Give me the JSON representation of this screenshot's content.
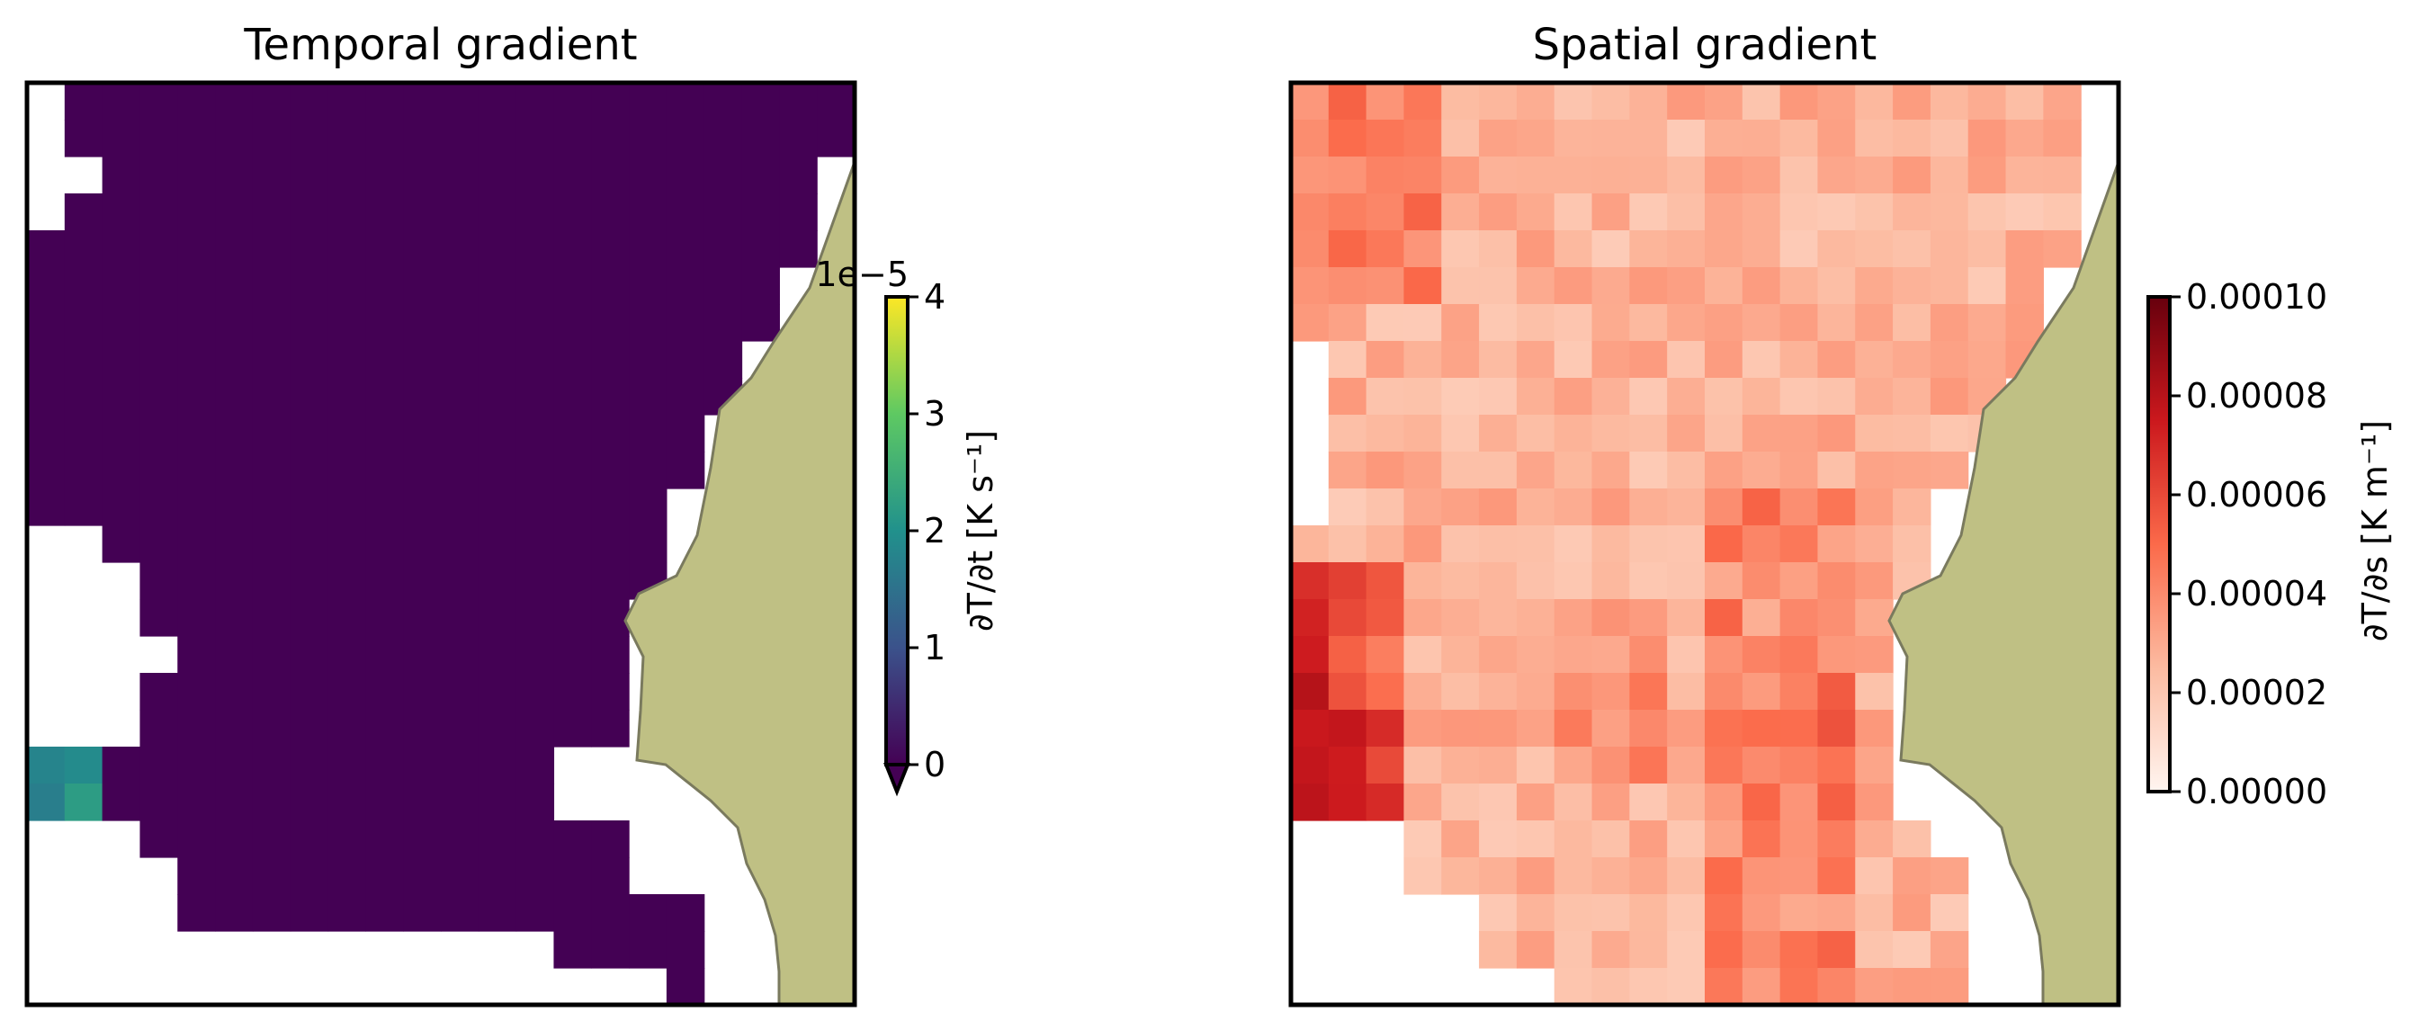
{
  "chart_data": [
    {
      "type": "heatmap",
      "title": "Temporal gradient",
      "colormap": "viridis",
      "colorbar": {
        "label": "∂T/∂t [K s⁻¹]",
        "ticks": [
          "0",
          "1",
          "2",
          "3",
          "4"
        ],
        "range": [
          0,
          4
        ],
        "offset_text": "1e−5",
        "extend": "min"
      },
      "grid": {
        "cols": 22,
        "rows": 25,
        "fill_value": 0,
        "missing_cells_description": "white gaps along the left and lower edges and near the coast",
        "highlighted_cells": [
          {
            "col": 0,
            "row": 18,
            "value": 1.8
          },
          {
            "col": 1,
            "row": 18,
            "value": 1.9
          },
          {
            "col": 0,
            "row": 19,
            "value": 1.7
          },
          {
            "col": 1,
            "row": 19,
            "value": 2.2
          }
        ]
      },
      "land_color": "#bfc084"
    },
    {
      "type": "heatmap",
      "title": "Spatial gradient",
      "colormap": "Reds",
      "colorbar": {
        "label": "∂T/∂s [K m⁻¹]",
        "ticks": [
          "0.00000",
          "0.00002",
          "0.00004",
          "0.00006",
          "0.00008",
          "0.00010"
        ],
        "range": [
          0,
          0.0001
        ]
      },
      "grid": {
        "cols": 22,
        "rows": 25,
        "value_range_observed": [
          5e-06,
          9e-05
        ]
      },
      "land_color": "#bfc084"
    }
  ]
}
